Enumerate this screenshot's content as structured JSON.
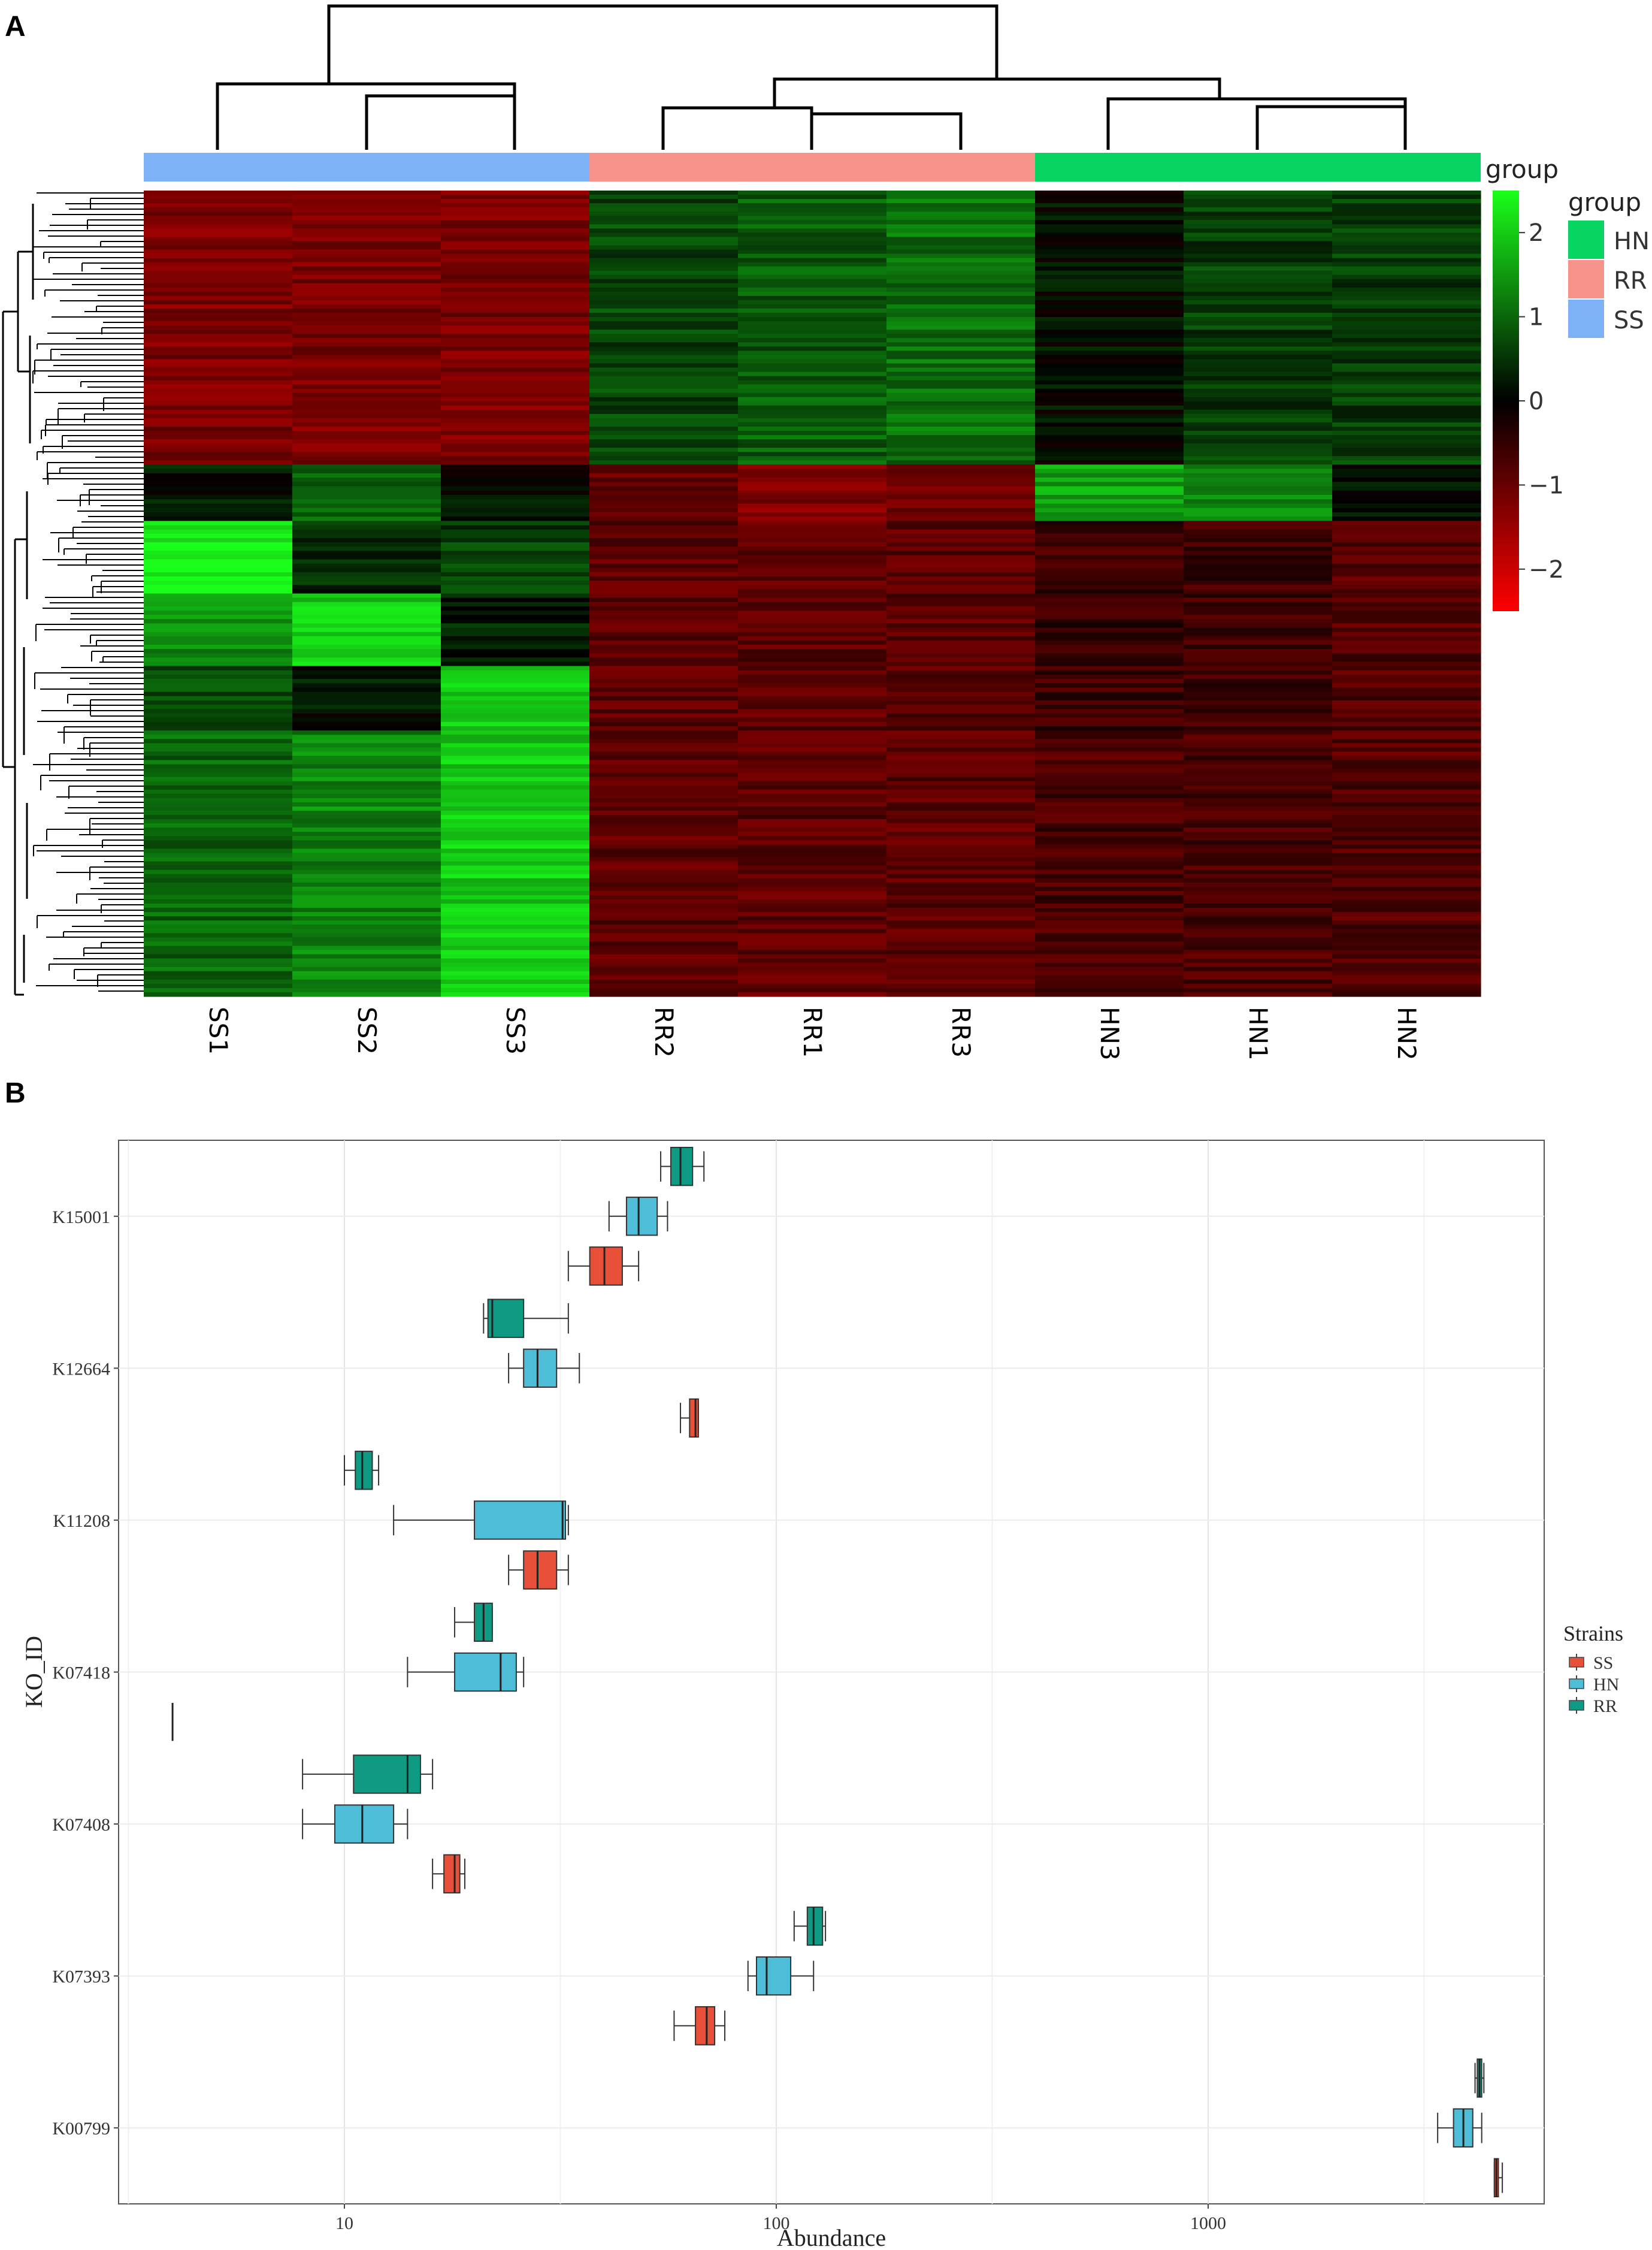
{
  "panel_labels": [
    "A",
    "B"
  ],
  "colors": {
    "SS": "#7fb1f7",
    "RR": "#f7938a",
    "HN": "#06d561",
    "box_SS": "#e8503a",
    "box_HN": "#4dbdd8",
    "box_RR": "#0f9a84",
    "heat_low": "#ff0000",
    "heat_mid": "#000000",
    "heat_high": "#1aff1a"
  },
  "chart_data": [
    {
      "type": "heatmap",
      "columns": [
        "SS1",
        "SS2",
        "SS3",
        "RR2",
        "RR1",
        "RR3",
        "HN3",
        "HN1",
        "HN2"
      ],
      "column_groups": [
        "SS",
        "SS",
        "SS",
        "RR",
        "RR",
        "RR",
        "HN",
        "HN",
        "HN"
      ],
      "color_scale": {
        "title": "group",
        "min": -2.5,
        "max": 2.5,
        "ticks": [
          2,
          1,
          0,
          -1,
          -2
        ],
        "tick_labels": [
          "2",
          "1",
          "0",
          "−1",
          "−2"
        ]
      },
      "group_legend": {
        "title": "group",
        "entries": [
          "HN",
          "RR",
          "SS"
        ]
      },
      "row_clusters": [
        {
          "rows": 0.34,
          "values": [
            -1.2,
            -1.2,
            -1.2,
            0.7,
            0.9,
            1.1,
            0.1,
            0.6,
            0.6
          ]
        },
        {
          "rows": 0.07,
          "values": [
            0.2,
            1.0,
            0.1,
            -1.0,
            -1.3,
            -1.1,
            1.6,
            1.4,
            0.1
          ]
        },
        {
          "rows": 0.09,
          "values": [
            2.4,
            0.4,
            0.6,
            -0.9,
            -0.9,
            -0.9,
            -0.6,
            -0.6,
            -0.8
          ]
        },
        {
          "rows": 0.09,
          "values": [
            1.4,
            2.0,
            0.3,
            -0.9,
            -0.9,
            -0.9,
            -0.5,
            -0.6,
            -0.8
          ]
        },
        {
          "rows": 0.08,
          "values": [
            0.8,
            0.2,
            2.0,
            -0.9,
            -0.9,
            -0.9,
            -0.6,
            -0.6,
            -0.8
          ]
        },
        {
          "rows": 0.33,
          "values": [
            1.0,
            1.3,
            2.0,
            -0.9,
            -0.9,
            -0.9,
            -0.7,
            -0.7,
            -0.8
          ]
        }
      ]
    },
    {
      "type": "box",
      "orientation": "horizontal",
      "xlabel": "Abundance",
      "ylabel": "KO_ID",
      "x_scale": "log10",
      "xlim": [
        3,
        6000
      ],
      "x_ticks": [
        10,
        100,
        1000
      ],
      "x_tick_labels": [
        "10",
        "100",
        "1000"
      ],
      "categories": [
        "K15001",
        "K12664",
        "K11208",
        "K07418",
        "K07408",
        "K07393",
        "K00799"
      ],
      "legend": {
        "title": "Strains",
        "entries": [
          "SS",
          "HN",
          "RR"
        ],
        "placement": "right"
      },
      "series": [
        {
          "name": "SS",
          "boxes": [
            {
              "category": "K15001",
              "min": 33,
              "q1": 37,
              "median": 40,
              "q3": 44,
              "max": 48
            },
            {
              "category": "K12664",
              "min": 60,
              "q1": 63,
              "median": 65,
              "q3": 66,
              "max": 66
            },
            {
              "category": "K11208",
              "min": 24,
              "q1": 26,
              "median": 28,
              "q3": 31,
              "max": 33
            },
            {
              "category": "K07418",
              "min": 4,
              "q1": 4,
              "median": 4,
              "q3": 4,
              "max": 4
            },
            {
              "category": "K07408",
              "min": 16,
              "q1": 17,
              "median": 18,
              "q3": 18.5,
              "max": 19
            },
            {
              "category": "K07393",
              "min": 58,
              "q1": 65,
              "median": 69,
              "q3": 72,
              "max": 76
            },
            {
              "category": "K00799",
              "min": 4600,
              "q1": 4600,
              "median": 4650,
              "q3": 4700,
              "max": 4800
            }
          ]
        },
        {
          "name": "HN",
          "boxes": [
            {
              "category": "K15001",
              "min": 41,
              "q1": 45,
              "median": 48,
              "q3": 53,
              "max": 56
            },
            {
              "category": "K12664",
              "min": 24,
              "q1": 26,
              "median": 28,
              "q3": 31,
              "max": 35
            },
            {
              "category": "K11208",
              "min": 13,
              "q1": 20,
              "median": 32,
              "q3": 32.5,
              "max": 33
            },
            {
              "category": "K07418",
              "min": 14,
              "q1": 18,
              "median": 23,
              "q3": 25,
              "max": 26
            },
            {
              "category": "K07408",
              "min": 8,
              "q1": 9.5,
              "median": 11,
              "q3": 13,
              "max": 14
            },
            {
              "category": "K07393",
              "min": 86,
              "q1": 90,
              "median": 95,
              "q3": 108,
              "max": 122
            },
            {
              "category": "K00799",
              "min": 3400,
              "q1": 3700,
              "median": 3900,
              "q3": 4100,
              "max": 4300
            }
          ]
        },
        {
          "name": "RR",
          "boxes": [
            {
              "category": "K15001",
              "min": 54,
              "q1": 57,
              "median": 60,
              "q3": 64,
              "max": 68
            },
            {
              "category": "K12664",
              "min": 21,
              "q1": 21.5,
              "median": 22,
              "q3": 26,
              "max": 33
            },
            {
              "category": "K11208",
              "min": 10,
              "q1": 10.6,
              "median": 11,
              "q3": 11.6,
              "max": 12
            },
            {
              "category": "K07418",
              "min": 18,
              "q1": 20,
              "median": 21,
              "q3": 22,
              "max": 22
            },
            {
              "category": "K07408",
              "min": 8,
              "q1": 10.5,
              "median": 14,
              "q3": 15,
              "max": 16
            },
            {
              "category": "K07393",
              "min": 110,
              "q1": 118,
              "median": 122,
              "q3": 128,
              "max": 130
            },
            {
              "category": "K00799",
              "min": 4150,
              "q1": 4200,
              "median": 4250,
              "q3": 4300,
              "max": 4350
            }
          ]
        }
      ]
    }
  ]
}
